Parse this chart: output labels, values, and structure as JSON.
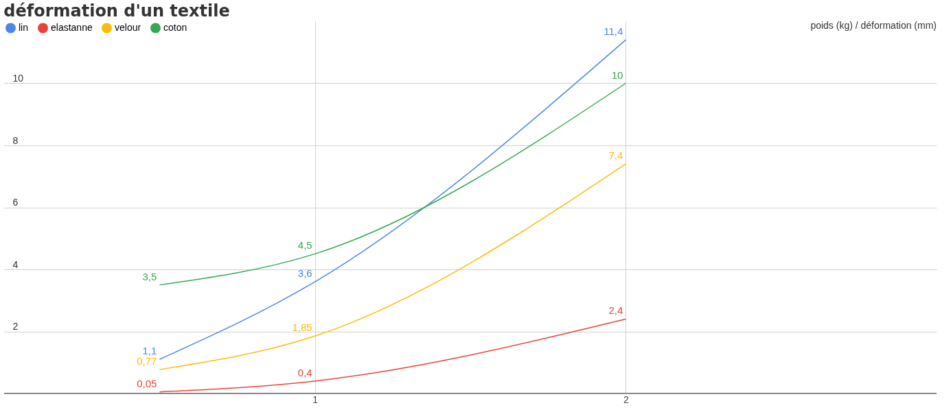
{
  "chart_data": {
    "type": "line",
    "title": "déformation d'un textile",
    "x": [
      0.5,
      1,
      2
    ],
    "series": [
      {
        "name": "lin",
        "color": "#4a86e8",
        "values": [
          1.1,
          3.6,
          11.4
        ],
        "value_labels": [
          "1,1",
          "3,6",
          "11,4"
        ]
      },
      {
        "name": "elastanne",
        "color": "#ea4335",
        "values": [
          0.05,
          0.4,
          2.4
        ],
        "value_labels": [
          "0,05",
          "0,4",
          "2,4"
        ]
      },
      {
        "name": "velour",
        "color": "#fbbc04",
        "values": [
          0.77,
          1.85,
          7.4
        ],
        "value_labels": [
          "0,77",
          "1,85",
          "7,4"
        ]
      },
      {
        "name": "coton",
        "color": "#34a853",
        "values": [
          3.5,
          4.5,
          10
        ],
        "value_labels": [
          "3,5",
          "4,5",
          "10"
        ]
      }
    ],
    "xlim": [
      0,
      3
    ],
    "xticks": [
      1,
      2
    ],
    "ylim": [
      0,
      12
    ],
    "yticks": [
      {
        "value": 0,
        "label": null
      },
      2,
      4,
      6,
      8,
      10
    ],
    "annotations": [
      "poids (kg) / déformation (mm)"
    ],
    "grid": true,
    "legend": "top left",
    "line_style": "solid"
  }
}
